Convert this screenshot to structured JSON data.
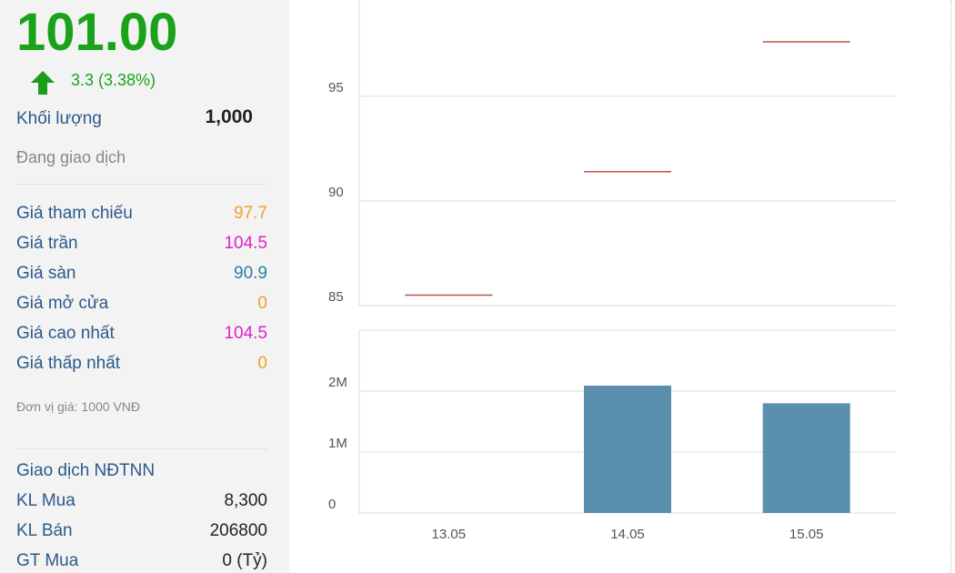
{
  "quote": {
    "price": "101.00",
    "change": "3.3 (3.38%)",
    "volume_label": "Khối lượng",
    "volume": "1,000",
    "status": "Đang giao dịch",
    "prices": [
      {
        "label": "Giá tham chiếu",
        "value": "97.7"
      },
      {
        "label": "Giá trần",
        "value": "104.5"
      },
      {
        "label": "Giá sàn",
        "value": "90.9"
      },
      {
        "label": "Giá mở cửa",
        "value": "0"
      },
      {
        "label": "Giá cao nhất",
        "value": "104.5"
      },
      {
        "label": "Giá thấp nhất",
        "value": "0"
      }
    ],
    "unit_note": "Đơn vị giá: 1000 VNĐ",
    "foreign": {
      "title": "Giao dịch NĐTNN",
      "rows": [
        {
          "label": "KL Mua",
          "value": "8,300"
        },
        {
          "label": "KL Bán",
          "value": "206800"
        },
        {
          "label": "GT Mua",
          "value": "0 (Tỷ)"
        }
      ]
    }
  },
  "chart_data": [
    {
      "type": "tick",
      "values": [
        85.5,
        91.4,
        97.6
      ],
      "color": "#c0504d",
      "ylim": [
        85,
        99.6
      ],
      "yticks": [
        85,
        90,
        95
      ],
      "grid": true
    },
    {
      "type": "bar",
      "categories": [
        "13.05",
        "14.05",
        "15.05"
      ],
      "values": [
        0,
        2090000,
        1800000
      ],
      "color": "#5a8fae",
      "ylim": [
        0,
        3000000
      ],
      "yticks": [
        0,
        {
          "value": 1000000,
          "label": "1M"
        },
        {
          "value": 2000000,
          "label": "2M"
        }
      ],
      "grid": true
    }
  ]
}
